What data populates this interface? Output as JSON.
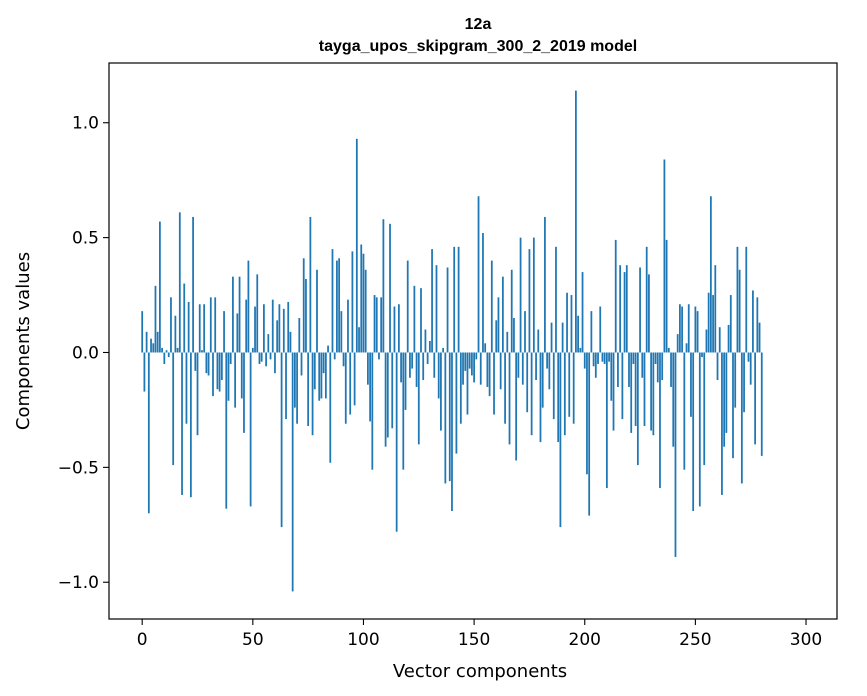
{
  "chart_data": {
    "type": "bar",
    "title": "12a",
    "subtitle": "tayga_upos_skipgram_300_2_2019 model",
    "xlabel": "Vector components",
    "ylabel": "Components values",
    "xlim": [
      -15,
      314
    ],
    "ylim": [
      -1.16,
      1.26
    ],
    "xticks": [
      0,
      50,
      100,
      150,
      200,
      250,
      300
    ],
    "xtick_labels": [
      "0",
      "50",
      "100",
      "150",
      "200",
      "250",
      "300"
    ],
    "yticks": [
      -1.0,
      -0.5,
      0.0,
      0.5,
      1.0
    ],
    "ytick_labels": [
      "−1.0",
      "−0.5",
      "0.0",
      "0.5",
      "1.0"
    ],
    "grid": false,
    "bar_color": "#1f77b4",
    "values": [
      0.18,
      -0.17,
      0.09,
      -0.7,
      0.06,
      0.04,
      0.29,
      0.09,
      0.57,
      0.02,
      -0.05,
      0.01,
      -0.02,
      0.24,
      -0.49,
      0.16,
      0.02,
      0.61,
      -0.62,
      0.3,
      -0.31,
      0.22,
      -0.63,
      0.59,
      -0.08,
      -0.36,
      0.21,
      0.01,
      0.21,
      -0.09,
      -0.1,
      0.24,
      -0.19,
      0.24,
      -0.16,
      -0.17,
      -0.12,
      0.18,
      -0.68,
      -0.21,
      -0.05,
      0.33,
      -0.24,
      0.17,
      0.33,
      -0.2,
      -0.35,
      0.23,
      0.4,
      -0.67,
      0.02,
      0.2,
      0.34,
      -0.05,
      -0.04,
      0.21,
      -0.06,
      0.08,
      -0.03,
      0.23,
      -0.09,
      0.14,
      0.21,
      -0.76,
      0.19,
      -0.29,
      0.22,
      0.09,
      -1.04,
      -0.24,
      -0.31,
      0.15,
      -0.1,
      0.41,
      0.32,
      -0.32,
      0.59,
      -0.36,
      -0.16,
      0.36,
      -0.21,
      -0.2,
      -0.09,
      -0.2,
      0.03,
      -0.48,
      0.45,
      -0.03,
      0.4,
      0.41,
      0.18,
      -0.06,
      -0.31,
      0.23,
      -0.27,
      0.44,
      -0.23,
      0.93,
      0.11,
      0.47,
      0.43,
      0.36,
      -0.14,
      -0.3,
      -0.51,
      0.25,
      0.24,
      -0.03,
      0.24,
      0.58,
      -0.41,
      -0.37,
      0.56,
      -0.33,
      0.2,
      -0.78,
      0.21,
      -0.13,
      -0.51,
      -0.25,
      0.4,
      -0.11,
      -0.07,
      0.29,
      -0.15,
      -0.4,
      0.28,
      -0.12,
      0.1,
      -0.05,
      0.05,
      0.45,
      -0.11,
      0.38,
      -0.2,
      -0.34,
      0.02,
      -0.57,
      0.37,
      -0.56,
      -0.69,
      0.46,
      -0.44,
      0.46,
      -0.31,
      -0.14,
      -0.08,
      -0.27,
      -0.07,
      -0.1,
      -0.13,
      -0.03,
      0.68,
      -0.14,
      0.52,
      0.04,
      -0.15,
      -0.19,
      0.4,
      -0.27,
      0.14,
      0.24,
      -0.16,
      0.33,
      -0.31,
      0.09,
      -0.4,
      0.36,
      0.15,
      -0.47,
      -0.11,
      0.5,
      -0.14,
      0.18,
      -0.26,
      0.45,
      -0.36,
      0.5,
      -0.12,
      0.1,
      -0.39,
      -0.24,
      0.59,
      -0.07,
      -0.16,
      0.13,
      -0.29,
      0.46,
      -0.39,
      -0.76,
      0.13,
      -0.36,
      0.26,
      -0.28,
      0.25,
      -0.31,
      1.14,
      0.16,
      0.02,
      0.35,
      -0.07,
      -0.53,
      -0.71,
      0.18,
      -0.06,
      -0.11,
      -0.05,
      0.2,
      -0.04,
      -0.05,
      -0.59,
      -0.04,
      -0.21,
      -0.34,
      0.49,
      -0.15,
      0.38,
      -0.29,
      0.35,
      0.38,
      -0.15,
      -0.35,
      -0.05,
      -0.32,
      -0.49,
      0.37,
      -0.11,
      -0.32,
      0.46,
      0.34,
      -0.34,
      -0.36,
      -0.05,
      -0.13,
      -0.59,
      -0.12,
      0.84,
      0.49,
      0.02,
      -0.15,
      -0.41,
      -0.89,
      0.08,
      0.21,
      0.2,
      -0.51,
      0.04,
      0.21,
      -0.28,
      -0.69,
      0.2,
      0.18,
      -0.67,
      -0.02,
      -0.49,
      0.1,
      0.26,
      0.68,
      0.25,
      0.38,
      -0.12,
      0.11,
      -0.62,
      -0.41,
      -0.35,
      0.12,
      0.25,
      -0.46,
      -0.24,
      0.46,
      0.36,
      -0.57,
      -0.26,
      0.46,
      -0.04,
      -0.14,
      0.27,
      -0.4,
      0.24,
      0.13,
      -0.45
    ]
  }
}
